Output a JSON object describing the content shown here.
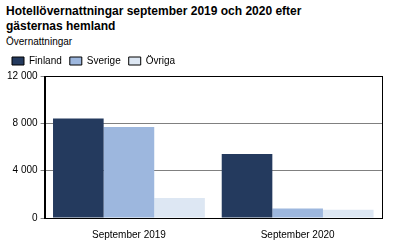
{
  "chart_data": {
    "type": "bar",
    "title": "Hotellövernattningar september 2019 och 2020 efter gästernas hemland",
    "y_label": "Övernattningar",
    "categories": [
      "September 2019",
      "September 2020"
    ],
    "series": [
      {
        "name": "Finland",
        "color": "#243a5e",
        "values": [
          8400,
          5400
        ]
      },
      {
        "name": "Sverige",
        "color": "#9db7de",
        "values": [
          7700,
          800
        ]
      },
      {
        "name": "Övriga",
        "color": "#dde7f3",
        "values": [
          1700,
          700
        ]
      }
    ],
    "ylim": [
      0,
      12000
    ],
    "yticks": [
      0,
      {
        "value": 4000,
        "label": "4 000"
      },
      {
        "value": 8000,
        "label": "8 000"
      },
      {
        "value": 12000,
        "label": "12 000"
      }
    ],
    "grid": true,
    "legend": "top"
  }
}
